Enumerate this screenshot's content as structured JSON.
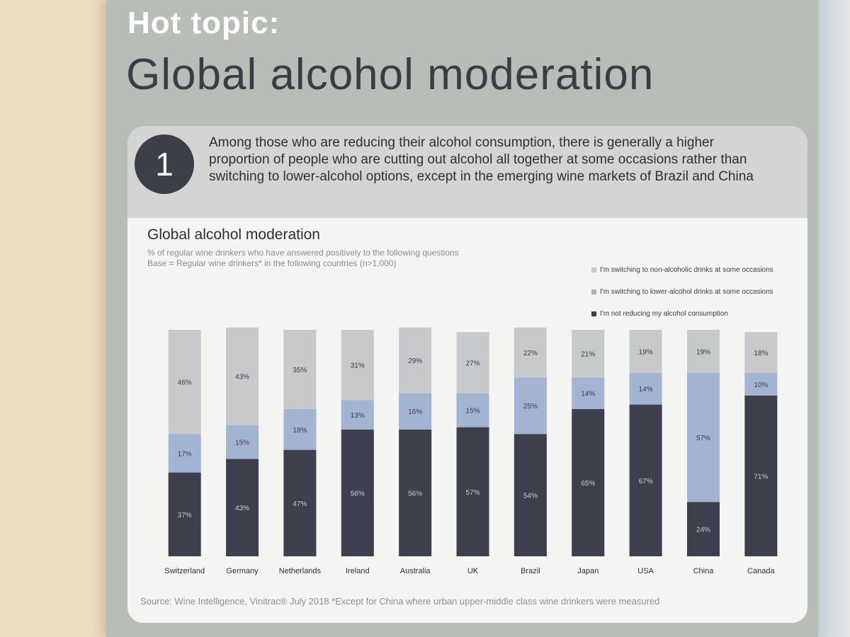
{
  "page": {
    "kicker": "Hot topic:",
    "headline": "Global alcohol moderation",
    "callout_number": "1",
    "callout_text": "Among those who are reducing their alcohol consumption, there is generally a higher proportion of people who are cutting out alcohol all together at some occasions rather than switching to lower-alcohol options, except in the emerging wine markets of Brazil and China",
    "source": "Source: Wine Intelligence, Vinitrac® July 2018 *Except for China where urban upper-middle class wine drinkers were measured"
  },
  "colors": {
    "non_alcoholic": "#c8c9cb",
    "lower_alcohol": "#a3b4d2",
    "not_reducing": "#3d3f4c"
  },
  "chart_data": {
    "type": "bar",
    "stacked": true,
    "title": "Global alcohol moderation",
    "subtitle_lines": [
      "% of regular wine drinkers who have answered positively to the following questions",
      "Base = Regular wine drinkers* in the following countries (n>1,000)"
    ],
    "categories": [
      "Switzerland",
      "Germany",
      "Netherlands",
      "Ireland",
      "Australia",
      "UK",
      "Brazil",
      "Japan",
      "USA",
      "China",
      "Canada"
    ],
    "series": [
      {
        "name": "I'm not reducing my alcohol consumption",
        "values": [
          37,
          43,
          47,
          56,
          56,
          57,
          54,
          65,
          67,
          24,
          71
        ]
      },
      {
        "name": "I'm switching to lower-alcohol drinks at some occasions",
        "values": [
          17,
          15,
          18,
          13,
          16,
          15,
          25,
          14,
          14,
          57,
          10
        ]
      },
      {
        "name": "I'm switching to non-alcoholic drinks at some occasions",
        "values": [
          46,
          43,
          35,
          31,
          29,
          27,
          22,
          21,
          19,
          19,
          18
        ]
      }
    ],
    "ylim": [
      0,
      100
    ],
    "legend_position": "top-right",
    "legend_order": [
      "I'm switching to non-alcoholic drinks at some occasions",
      "I'm switching to lower-alcohol drinks at some occasions",
      "I'm not reducing my alcohol consumption"
    ]
  }
}
